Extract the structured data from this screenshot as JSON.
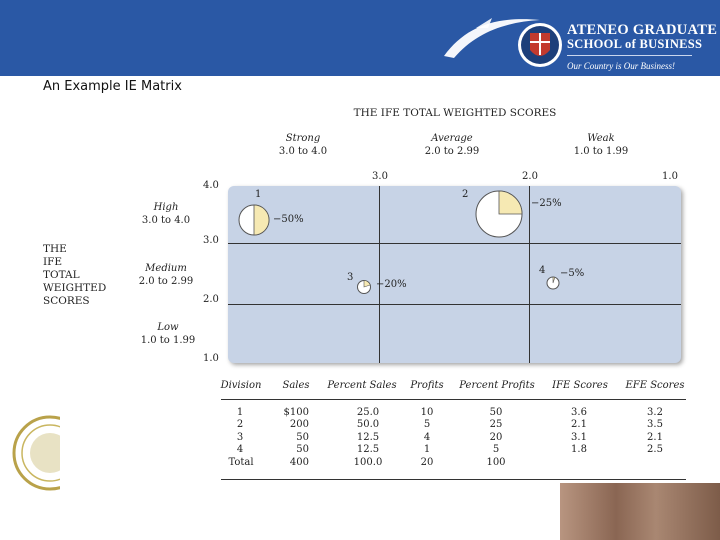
{
  "header": {
    "school_line1": "ATENEO GRADUATE",
    "school_line2": "SCHOOL of BUSINESS",
    "tagline": "Our Country is Our Business!"
  },
  "slide_title": "An Example IE Matrix",
  "matrix": {
    "top_axis_title": "THE IFE TOTAL WEIGHTED SCORES",
    "left_axis_title": [
      "THE",
      "IFE",
      "TOTAL",
      "WEIGHTED",
      "SCORES"
    ],
    "column_headers": [
      {
        "name": "Strong",
        "range": "3.0 to 4.0"
      },
      {
        "name": "Average",
        "range": "2.0 to 2.99"
      },
      {
        "name": "Weak",
        "range": "1.0 to 1.99"
      }
    ],
    "row_headers": [
      {
        "name": "High",
        "range": "3.0 to 4.0"
      },
      {
        "name": "Medium",
        "range": "2.0 to 2.99"
      },
      {
        "name": "Low",
        "range": "1.0 to 1.99"
      }
    ],
    "top_ticks": [
      "3.0",
      "2.0",
      "1.0"
    ],
    "left_ticks": [
      "4.0",
      "3.0",
      "2.0",
      "1.0"
    ],
    "divisions": [
      {
        "number": "1",
        "label": "−50%",
        "pie_fraction": 0.5
      },
      {
        "number": "2",
        "label": "−25%",
        "pie_fraction": 0.25
      },
      {
        "number": "3",
        "label": "−20%",
        "pie_fraction": 0.2
      },
      {
        "number": "4",
        "label": "−5%",
        "pie_fraction": 0.05
      }
    ]
  },
  "table": {
    "headers": [
      "Division",
      "Sales",
      "Percent Sales",
      "Profits",
      "Percent Profits",
      "IFE Scores",
      "EFE Scores"
    ],
    "rows": [
      [
        "1",
        "$100",
        "25.0",
        "10",
        "50",
        "3.6",
        "3.2"
      ],
      [
        "2",
        "200",
        "50.0",
        "5",
        "25",
        "2.1",
        "3.5"
      ],
      [
        "3",
        "50",
        "12.5",
        "4",
        "20",
        "3.1",
        "2.1"
      ],
      [
        "4",
        "50",
        "12.5",
        "1",
        "5",
        "1.8",
        "2.5"
      ],
      [
        "Total",
        "400",
        "100.0",
        "20",
        "100",
        "",
        ""
      ]
    ]
  },
  "colors": {
    "header_bg": "#2a58a5",
    "grid_fill": "#c7d3e6",
    "pie_fill": "#f6e9b3"
  }
}
